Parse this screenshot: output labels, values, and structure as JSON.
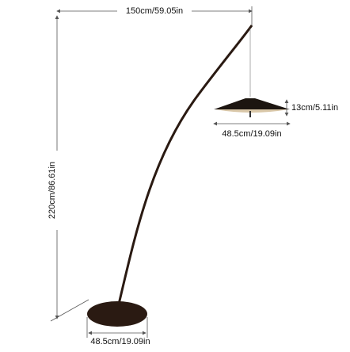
{
  "dimensions": {
    "width": "150cm/59.05in",
    "height": "220cm/86.61in",
    "shade_height": "13cm/5.11in",
    "shade_diameter": "48.5cm/19.09in",
    "base_diameter": "48.5cm/19.09in"
  }
}
